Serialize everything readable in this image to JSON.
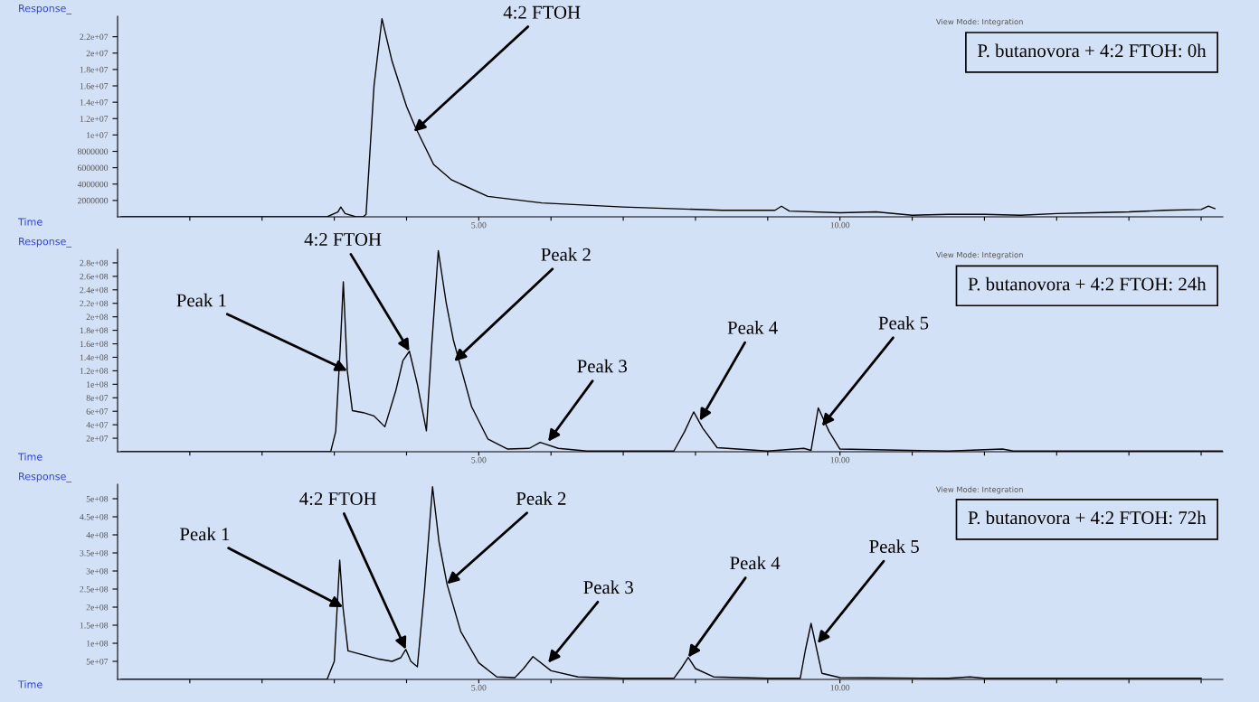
{
  "chart_data": [
    {
      "type": "line",
      "title": "P. butanovora + 4:2 FTOH: 0h",
      "xlabel": "Time",
      "ylabel": "Response_",
      "grid": false,
      "legend": false,
      "marker": "none",
      "line_style": "solid",
      "xlim": [
        0,
        15.3
      ],
      "ylim": [
        0,
        24500000.0
      ],
      "xticks": [
        {
          "value": 1,
          "label": null
        },
        {
          "value": 2,
          "label": null
        },
        {
          "value": 3,
          "label": null
        },
        {
          "value": 4,
          "label": null
        },
        {
          "value": 5,
          "label": "5.00"
        },
        {
          "value": 6,
          "label": null
        },
        {
          "value": 7,
          "label": null
        },
        {
          "value": 8,
          "label": null
        },
        {
          "value": 9,
          "label": null
        },
        {
          "value": 10,
          "label": "10.00"
        },
        {
          "value": 11,
          "label": null
        },
        {
          "value": 12,
          "label": null
        },
        {
          "value": 13,
          "label": null
        },
        {
          "value": 14,
          "label": null
        },
        {
          "value": 15,
          "label": null
        }
      ],
      "yticks": [
        2000000,
        4000000,
        6000000,
        8000000,
        {
          "value": 10000000.0,
          "label": "1e+07"
        },
        {
          "value": 12000000.0,
          "label": "1.2e+07"
        },
        {
          "value": 14000000.0,
          "label": "1.4e+07"
        },
        {
          "value": 16000000.0,
          "label": "1.6e+07"
        },
        {
          "value": 18000000.0,
          "label": "1.8e+07"
        },
        {
          "value": 20000000.0,
          "label": "2e+07"
        },
        {
          "value": 22000000.0,
          "label": "2.2e+07"
        }
      ],
      "series": [
        {
          "color": "#000000",
          "x": [
            0.05,
            2.9,
            3.05,
            3.09,
            3.15,
            3.3,
            3.4,
            3.44,
            3.55,
            3.66,
            3.8,
            4.0,
            4.125,
            4.375,
            4.625,
            5.125,
            5.875,
            7.0,
            8.375,
            9.1,
            9.19,
            9.3,
            10.0,
            10.5,
            11.0,
            11.5,
            12.0,
            12.5,
            13.0,
            13.5,
            14.0,
            14.5,
            15.0,
            15.1,
            15.19
          ],
          "values": [
            0,
            0,
            600000,
            1200000,
            400000,
            0,
            0,
            300000,
            16000000.0,
            24200000.0,
            19000000.0,
            13500000.0,
            10900000.0,
            6400000.0,
            4500000.0,
            2500000.0,
            1700000.0,
            1200000.0,
            800000.0,
            800000.0,
            1300000.0,
            700000.0,
            500000.0,
            600000.0,
            200000.0,
            300000.0,
            300000.0,
            200000.0,
            400000.0,
            500000.0,
            600000.0,
            800000.0,
            900000.0,
            1300000.0,
            1000000.0
          ]
        }
      ],
      "annotations": [
        {
          "text": "4:2 FTOH",
          "x": 4.1,
          "y": 10400000.0
        },
        "View Mode: Integration"
      ]
    },
    {
      "type": "line",
      "title": "P. butanovora + 4:2 FTOH: 24h",
      "xlabel": "Time",
      "ylabel": "Response_",
      "grid": false,
      "legend": false,
      "marker": "none",
      "line_style": "solid",
      "xlim": [
        0,
        15.3
      ],
      "ylim": [
        0,
        300000000.0
      ],
      "xticks": [
        {
          "value": 1,
          "label": null
        },
        {
          "value": 2,
          "label": null
        },
        {
          "value": 3,
          "label": null
        },
        {
          "value": 4,
          "label": null
        },
        {
          "value": 5,
          "label": "5.00"
        },
        {
          "value": 6,
          "label": null
        },
        {
          "value": 7,
          "label": null
        },
        {
          "value": 8,
          "label": null
        },
        {
          "value": 9,
          "label": null
        },
        {
          "value": 10,
          "label": "10.00"
        },
        {
          "value": 11,
          "label": null
        },
        {
          "value": 12,
          "label": null
        },
        {
          "value": 13,
          "label": null
        },
        {
          "value": 14,
          "label": null
        },
        {
          "value": 15,
          "label": null
        }
      ],
      "yticks": [
        {
          "value": 20000000.0,
          "label": "2e+07"
        },
        {
          "value": 40000000.0,
          "label": "4e+07"
        },
        {
          "value": 60000000.0,
          "label": "6e+07"
        },
        {
          "value": 80000000.0,
          "label": "8e+07"
        },
        {
          "value": 100000000.0,
          "label": "1e+08"
        },
        {
          "value": 120000000.0,
          "label": "1.2e+08"
        },
        {
          "value": 140000000.0,
          "label": "1.4e+08"
        },
        {
          "value": 160000000.0,
          "label": "1.6e+08"
        },
        {
          "value": 180000000.0,
          "label": "1.8e+08"
        },
        {
          "value": 200000000.0,
          "label": "2e+08"
        },
        {
          "value": 220000000.0,
          "label": "2.2e+08"
        },
        {
          "value": 240000000.0,
          "label": "2.4e+08"
        },
        {
          "value": 260000000.0,
          "label": "2.6e+08"
        },
        {
          "value": 280000000.0,
          "label": "2.8e+08"
        }
      ],
      "series": [
        {
          "color": "#000000",
          "x": [
            0.05,
            2.95,
            3.02,
            3.09,
            3.125,
            3.18,
            3.25,
            3.4,
            3.55,
            3.7,
            3.85,
            3.95,
            4.04,
            4.15,
            4.275,
            4.35,
            4.44,
            4.55,
            4.65,
            4.9,
            5.125,
            5.4,
            5.7,
            5.85,
            6.1,
            6.5,
            7.7,
            7.85,
            7.975,
            8.1,
            8.3,
            9.0,
            9.5,
            9.6,
            9.7,
            9.85,
            10.0,
            11.5,
            12.25,
            12.4,
            15.3
          ],
          "values": [
            0,
            0,
            30000000.0,
            170000000.0,
            252000000.0,
            120000000.0,
            61000000.0,
            58000000.0,
            53000000.0,
            37000000.0,
            90000000.0,
            135000000.0,
            149000000.0,
            100000000.0,
            31000000.0,
            160000000.0,
            298000000.0,
            220000000.0,
            165000000.0,
            67000000.0,
            19000000.0,
            4000000.0,
            5000000.0,
            14000000.0,
            5000000.0,
            1000000.0,
            1000000.0,
            30000000.0,
            59000000.0,
            35000000.0,
            6000000.0,
            1000000.0,
            5000000.0,
            2000000.0,
            65000000.0,
            30000000.0,
            4000000.0,
            1000000.0,
            4000000.0,
            1000000.0,
            1000000.0
          ]
        }
      ],
      "annotations": [
        {
          "text": "Peak 1",
          "x": 3.18,
          "y": 120000000.0
        },
        {
          "text": "4:2 FTOH",
          "x": 4.04,
          "y": 149000000.0
        },
        {
          "text": "Peak 2",
          "x": 4.66,
          "y": 134000000.0
        },
        {
          "text": "Peak 3",
          "x": 5.96,
          "y": 15000000.0
        },
        {
          "text": "Peak 4",
          "x": 8.06,
          "y": 46000000.0
        },
        {
          "text": "Peak 5",
          "x": 9.75,
          "y": 38000000.0
        },
        "View Mode: Integration"
      ]
    },
    {
      "type": "line",
      "title": "P. butanovora + 4:2 FTOH: 72h",
      "xlabel": "Time",
      "ylabel": "Response_",
      "grid": false,
      "legend": false,
      "marker": "none",
      "line_style": "solid",
      "xlim": [
        0,
        15.3
      ],
      "ylim": [
        0,
        540000000.0
      ],
      "xticks": [
        {
          "value": 1,
          "label": null
        },
        {
          "value": 2,
          "label": null
        },
        {
          "value": 3,
          "label": null
        },
        {
          "value": 4,
          "label": null
        },
        {
          "value": 5,
          "label": "5.00"
        },
        {
          "value": 6,
          "label": null
        },
        {
          "value": 7,
          "label": null
        },
        {
          "value": 8,
          "label": null
        },
        {
          "value": 9,
          "label": null
        },
        {
          "value": 10,
          "label": "10.00"
        },
        {
          "value": 11,
          "label": null
        },
        {
          "value": 12,
          "label": null
        },
        {
          "value": 13,
          "label": null
        },
        {
          "value": 14,
          "label": null
        },
        {
          "value": 15,
          "label": null
        }
      ],
      "yticks": [
        {
          "value": 50000000.0,
          "label": "5e+07"
        },
        {
          "value": 100000000.0,
          "label": "1e+08"
        },
        {
          "value": 150000000.0,
          "label": "1.5e+08"
        },
        {
          "value": 200000000.0,
          "label": "2e+08"
        },
        {
          "value": 250000000.0,
          "label": "2.5e+08"
        },
        {
          "value": 300000000.0,
          "label": "3e+08"
        },
        {
          "value": 350000000.0,
          "label": "3.5e+08"
        },
        {
          "value": 400000000.0,
          "label": "4e+08"
        },
        {
          "value": 450000000.0,
          "label": "4.5e+08"
        },
        {
          "value": 500000000.0,
          "label": "5e+08"
        }
      ],
      "series": [
        {
          "color": "#000000",
          "x": [
            0.05,
            2.9,
            3.0,
            3.075,
            3.12,
            3.19,
            3.4,
            3.6,
            3.8,
            3.92,
            3.99,
            4.06,
            4.15,
            4.25,
            4.36,
            4.45,
            4.56,
            4.75,
            5.0,
            5.25,
            5.5,
            5.62,
            5.75,
            6.0,
            6.375,
            7.0,
            7.7,
            7.8,
            7.9,
            8.0,
            8.25,
            9.0,
            9.45,
            9.52,
            9.6,
            9.75,
            10.0,
            11.5,
            11.8,
            12.0,
            15.0
          ],
          "values": [
            0,
            0,
            50000000.0,
            330000000.0,
            200000000.0,
            79000000.0,
            68000000.0,
            57000000.0,
            50000000.0,
            60000000.0,
            83000000.0,
            50000000.0,
            35000000.0,
            250000000.0,
            533000000.0,
            380000000.0,
            264000000.0,
            133000000.0,
            46000000.0,
            7000000.0,
            5000000.0,
            30000000.0,
            63000000.0,
            24000000.0,
            7000000.0,
            3000000.0,
            3000000.0,
            30000000.0,
            61000000.0,
            30000000.0,
            7000000.0,
            3000000.0,
            3000000.0,
            80000000.0,
            155000000.0,
            17000000.0,
            5000000.0,
            3000000.0,
            7000000.0,
            3000000.0,
            3000000.0
          ]
        }
      ],
      "annotations": [
        {
          "text": "Peak 1",
          "x": 3.12,
          "y": 200000000.0
        },
        {
          "text": "4:2 FTOH",
          "x": 3.99,
          "y": 83000000.0
        },
        {
          "text": "Peak 2",
          "x": 4.56,
          "y": 264000000.0
        },
        {
          "text": "Peak 3",
          "x": 5.96,
          "y": 46000000.0
        },
        {
          "text": "Peak 4",
          "x": 7.9,
          "y": 61000000.0
        },
        {
          "text": "Peak 5",
          "x": 9.69,
          "y": 100000000.0
        },
        "View Mode: Integration"
      ]
    }
  ]
}
